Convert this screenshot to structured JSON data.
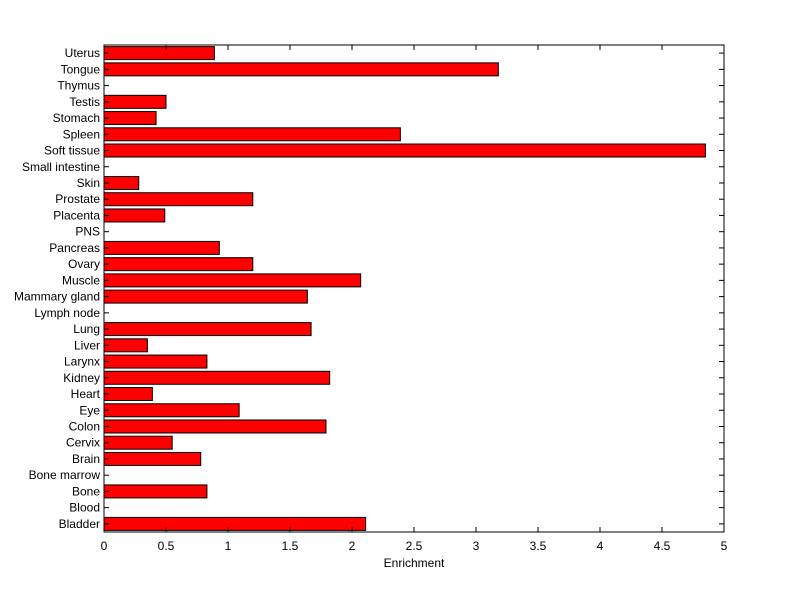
{
  "chart_data": {
    "type": "bar",
    "orientation": "horizontal",
    "title": "",
    "xlabel": "Enrichment",
    "ylabel": "",
    "xlim": [
      0,
      5
    ],
    "xticks": [
      0,
      0.5,
      1,
      1.5,
      2,
      2.5,
      3,
      3.5,
      4,
      4.5,
      5
    ],
    "xtick_labels": [
      "0",
      "0.5",
      "1",
      "1.5",
      "2",
      "2.5",
      "3",
      "3.5",
      "4",
      "4.5",
      "5"
    ],
    "grid": false,
    "legend": "none",
    "bar_color": "#ff0000",
    "bar_edge_color": "#000000",
    "categories": [
      "Bladder",
      "Blood",
      "Bone",
      "Bone marrow",
      "Brain",
      "Cervix",
      "Colon",
      "Eye",
      "Heart",
      "Kidney",
      "Larynx",
      "Liver",
      "Lung",
      "Lymph node",
      "Mammary gland",
      "Muscle",
      "Ovary",
      "Pancreas",
      "PNS",
      "Placenta",
      "Prostate",
      "Skin",
      "Small intestine",
      "Soft tissue",
      "Spleen",
      "Stomach",
      "Testis",
      "Thymus",
      "Tongue",
      "Uterus"
    ],
    "values": [
      2.11,
      0,
      0.83,
      0,
      0.78,
      0.55,
      1.79,
      1.09,
      0.39,
      1.82,
      0.83,
      0.35,
      1.67,
      0,
      1.64,
      2.07,
      1.2,
      0.93,
      0,
      0.49,
      1.2,
      0.28,
      0,
      4.85,
      2.39,
      0.42,
      0.5,
      0,
      3.18,
      0.89
    ]
  }
}
